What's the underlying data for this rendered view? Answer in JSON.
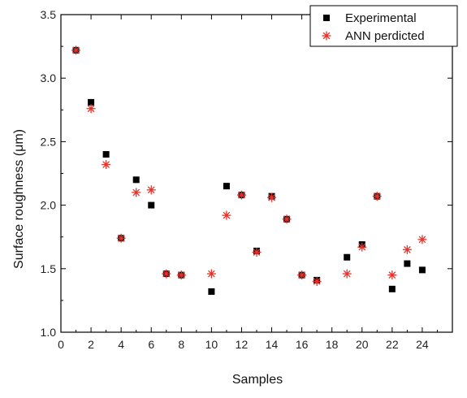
{
  "chart_data": {
    "type": "scatter",
    "xlabel": "Samples",
    "ylabel": "Surface roughness (μm)",
    "xlim": [
      0,
      26
    ],
    "ylim": [
      1.0,
      3.5
    ],
    "xticks": [
      "0",
      "2",
      "4",
      "6",
      "8",
      "10",
      "12",
      "14",
      "16",
      "18",
      "20",
      "22",
      "24"
    ],
    "yticks": [
      "1.0",
      "1.5",
      "2.0",
      "2.5",
      "3.0",
      "3.5"
    ],
    "grid": false,
    "legend_position": "top-right",
    "series": [
      {
        "name": "Experimental",
        "marker": "square",
        "color": "#000000",
        "points": [
          {
            "x": 1,
            "y": 3.22
          },
          {
            "x": 2,
            "y": 2.81
          },
          {
            "x": 3,
            "y": 2.4
          },
          {
            "x": 4,
            "y": 1.74
          },
          {
            "x": 5,
            "y": 2.2
          },
          {
            "x": 6,
            "y": 2.0
          },
          {
            "x": 7,
            "y": 1.46
          },
          {
            "x": 8,
            "y": 1.45
          },
          {
            "x": 10,
            "y": 1.32
          },
          {
            "x": 11,
            "y": 2.15
          },
          {
            "x": 12,
            "y": 2.08
          },
          {
            "x": 13,
            "y": 1.64
          },
          {
            "x": 14,
            "y": 2.07
          },
          {
            "x": 15,
            "y": 1.89
          },
          {
            "x": 16,
            "y": 1.45
          },
          {
            "x": 17,
            "y": 1.41
          },
          {
            "x": 19,
            "y": 1.59
          },
          {
            "x": 20,
            "y": 1.69
          },
          {
            "x": 21,
            "y": 2.07
          },
          {
            "x": 22,
            "y": 1.34
          },
          {
            "x": 23,
            "y": 1.54
          },
          {
            "x": 24,
            "y": 1.49
          }
        ]
      },
      {
        "name": "ANN perdicted",
        "marker": "asterisk",
        "color": "#e8312a",
        "points": [
          {
            "x": 1,
            "y": 3.22
          },
          {
            "x": 2,
            "y": 2.76
          },
          {
            "x": 3,
            "y": 2.32
          },
          {
            "x": 4,
            "y": 1.74
          },
          {
            "x": 5,
            "y": 2.1
          },
          {
            "x": 6,
            "y": 2.12
          },
          {
            "x": 7,
            "y": 1.46
          },
          {
            "x": 8,
            "y": 1.45
          },
          {
            "x": 10,
            "y": 1.46
          },
          {
            "x": 11,
            "y": 1.92
          },
          {
            "x": 12,
            "y": 2.08
          },
          {
            "x": 13,
            "y": 1.63
          },
          {
            "x": 14,
            "y": 2.06
          },
          {
            "x": 15,
            "y": 1.89
          },
          {
            "x": 16,
            "y": 1.45
          },
          {
            "x": 17,
            "y": 1.4
          },
          {
            "x": 19,
            "y": 1.46
          },
          {
            "x": 20,
            "y": 1.67
          },
          {
            "x": 21,
            "y": 2.07
          },
          {
            "x": 22,
            "y": 1.45
          },
          {
            "x": 23,
            "y": 1.65
          },
          {
            "x": 24,
            "y": 1.73
          }
        ]
      }
    ]
  }
}
